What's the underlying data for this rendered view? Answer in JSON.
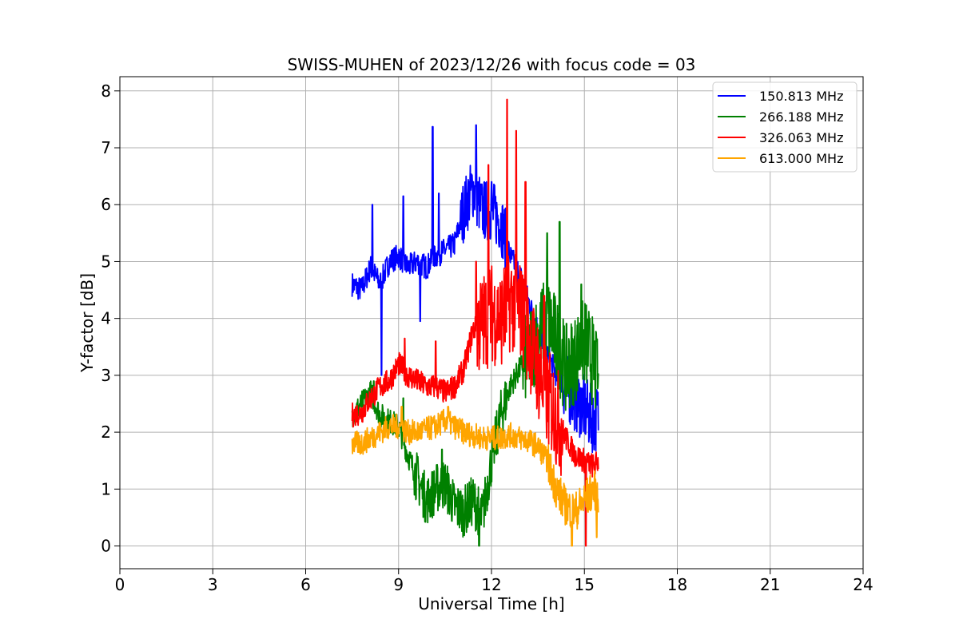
{
  "chart_data": {
    "type": "line",
    "title": "SWISS-MUHEN of 2023/12/26 with focus code = 03",
    "xlabel": "Universal Time [h]",
    "ylabel": "Y-factor [dB]",
    "xlim": [
      0,
      24
    ],
    "ylim": [
      -0.4,
      8.25
    ],
    "xticks": [
      0,
      3,
      6,
      9,
      12,
      15,
      18,
      21,
      24
    ],
    "yticks": [
      0,
      1,
      2,
      3,
      4,
      5,
      6,
      7,
      8
    ],
    "grid": true,
    "legend_position": "top-right",
    "series": [
      {
        "name": "150.813 MHz",
        "color": "#0000ff",
        "x": [
          7.5,
          7.8,
          8.1,
          8.4,
          8.7,
          9.0,
          9.3,
          9.6,
          9.9,
          10.2,
          10.5,
          10.8,
          11.1,
          11.4,
          11.7,
          12.0,
          12.3,
          12.6,
          12.9,
          13.2,
          13.5,
          13.8,
          14.1,
          14.4,
          14.7,
          15.0,
          15.3,
          15.45
        ],
        "y": [
          4.6,
          4.5,
          4.9,
          4.6,
          5.0,
          5.1,
          4.9,
          5.0,
          4.9,
          5.1,
          5.2,
          5.3,
          5.9,
          6.3,
          5.9,
          5.9,
          5.7,
          5.1,
          4.8,
          4.3,
          3.8,
          3.4,
          3.0,
          2.8,
          2.6,
          2.4,
          2.2,
          2.3
        ],
        "peaks": [
          [
            8.15,
            6.0
          ],
          [
            8.45,
            3.0
          ],
          [
            9.15,
            6.15
          ],
          [
            9.7,
            3.95
          ],
          [
            10.1,
            7.37
          ],
          [
            10.3,
            6.2
          ],
          [
            11.5,
            7.4
          ],
          [
            12.0,
            6.4
          ]
        ]
      },
      {
        "name": "266.188 MHz",
        "color": "#008000",
        "x": [
          7.5,
          7.8,
          8.1,
          8.4,
          8.7,
          9.0,
          9.3,
          9.6,
          9.9,
          10.2,
          10.5,
          10.8,
          11.1,
          11.4,
          11.7,
          12.0,
          12.3,
          12.6,
          12.9,
          13.2,
          13.5,
          13.8,
          14.1,
          14.4,
          14.7,
          15.0,
          15.3,
          15.45
        ],
        "y": [
          2.3,
          2.5,
          2.7,
          2.3,
          2.2,
          2.1,
          1.6,
          1.2,
          0.8,
          1.0,
          1.1,
          0.7,
          0.6,
          0.8,
          0.5,
          1.5,
          2.3,
          2.8,
          3.1,
          3.4,
          3.7,
          4.0,
          3.6,
          3.1,
          3.3,
          3.6,
          3.2,
          2.8
        ],
        "peaks": [
          [
            8.2,
            2.9
          ],
          [
            9.15,
            2.6
          ],
          [
            10.4,
            1.7
          ],
          [
            11.6,
            0.0
          ],
          [
            13.8,
            5.5
          ],
          [
            14.2,
            5.7
          ],
          [
            14.9,
            4.6
          ],
          [
            15.4,
            3.6
          ]
        ]
      },
      {
        "name": "326.063 MHz",
        "color": "#ff0000",
        "x": [
          7.5,
          7.8,
          8.1,
          8.4,
          8.7,
          9.0,
          9.3,
          9.6,
          9.9,
          10.2,
          10.5,
          10.8,
          11.1,
          11.4,
          11.7,
          12.0,
          12.3,
          12.6,
          12.9,
          13.2,
          13.5,
          13.8,
          14.1,
          14.4,
          14.7,
          15.0,
          15.3,
          15.45
        ],
        "y": [
          2.3,
          2.35,
          2.6,
          2.8,
          2.9,
          3.2,
          3.0,
          2.9,
          2.8,
          2.8,
          2.7,
          2.8,
          3.1,
          3.8,
          3.9,
          4.1,
          4.0,
          4.3,
          4.2,
          3.7,
          3.1,
          2.6,
          2.3,
          1.9,
          1.6,
          1.5,
          1.4,
          1.5
        ],
        "peaks": [
          [
            9.2,
            3.65
          ],
          [
            10.2,
            3.6
          ],
          [
            11.5,
            5.0
          ],
          [
            11.9,
            6.7
          ],
          [
            12.5,
            7.85
          ],
          [
            12.8,
            7.3
          ],
          [
            13.1,
            6.4
          ],
          [
            13.7,
            4.4
          ],
          [
            15.05,
            0.0
          ]
        ]
      },
      {
        "name": "613.000 MHz",
        "color": "#ffa500",
        "x": [
          7.5,
          7.8,
          8.1,
          8.4,
          8.7,
          9.0,
          9.3,
          9.6,
          9.9,
          10.2,
          10.5,
          10.8,
          11.1,
          11.4,
          11.7,
          12.0,
          12.3,
          12.6,
          12.9,
          13.2,
          13.5,
          13.8,
          14.1,
          14.4,
          14.7,
          15.0,
          15.3,
          15.45
        ],
        "y": [
          1.8,
          1.8,
          1.9,
          2.0,
          2.1,
          2.1,
          2.0,
          2.0,
          2.05,
          2.1,
          2.2,
          2.1,
          2.0,
          1.95,
          1.9,
          1.9,
          1.9,
          1.95,
          1.9,
          1.85,
          1.75,
          1.5,
          1.0,
          0.7,
          0.6,
          0.8,
          1.0,
          0.9
        ],
        "peaks": [
          [
            9.1,
            2.45
          ],
          [
            10.6,
            2.45
          ],
          [
            14.6,
            0.0
          ],
          [
            15.4,
            0.15
          ]
        ]
      }
    ]
  }
}
